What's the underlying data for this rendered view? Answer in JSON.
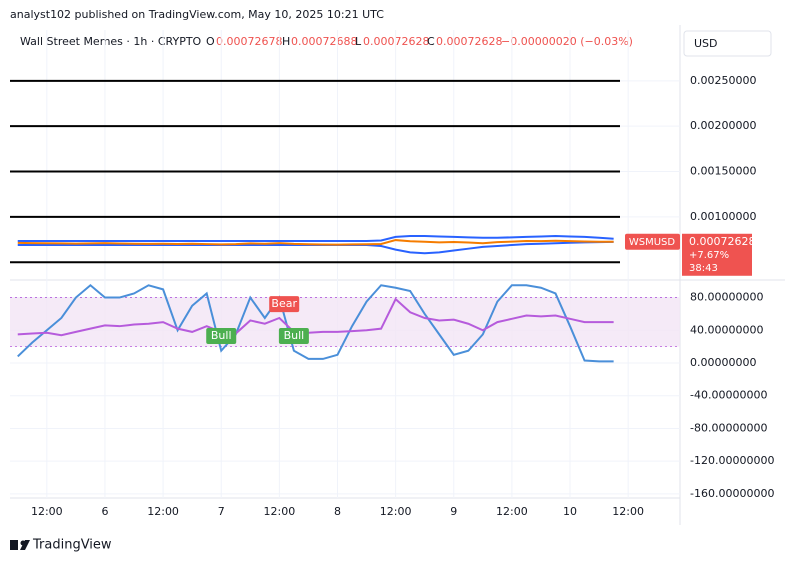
{
  "header": {
    "published": "analyst102 published on TradingView.com, May 10, 2025 10:21 UTC",
    "symbol": "Wall Street Memes · 1h · CRYPTO",
    "o_label": "O",
    "open": "0.00072678",
    "h_label": "H",
    "high": "0.00072688",
    "l_label": "L",
    "low": "0.00072628",
    "c_label": "C",
    "close": "0.00072628",
    "change": "−0.00000020 (−0.03%)",
    "currency": "USD"
  },
  "last_price": {
    "symbol": "WSMUSD",
    "value": 0.00072628,
    "change": "+7.67%",
    "countdown": "38:43"
  },
  "footer": {
    "brand": "TradingView"
  },
  "chart_data": [
    {
      "type": "line",
      "name": "price",
      "x": [
        -6,
        -3,
        0,
        3,
        6,
        9,
        12,
        15,
        18,
        21,
        24,
        27,
        30,
        33,
        36,
        39,
        42,
        45,
        48,
        51,
        54,
        57,
        60,
        63,
        66,
        69,
        72,
        75,
        78,
        81,
        84,
        87,
        90,
        93,
        96,
        99,
        102,
        105,
        108,
        111,
        114,
        117
      ],
      "xlim": [
        -7.6,
        130.7
      ],
      "ylim": [
        0.000327,
        0.00306
      ],
      "yticks": [
        {
          "value": 0.0025,
          "label": "0.00250000"
        },
        {
          "value": 0.002,
          "label": "0.00200000"
        },
        {
          "value": 0.0015,
          "label": "0.00150000"
        },
        {
          "value": 0.001,
          "label": "0.00100000"
        }
      ],
      "horizontal_lines": [
        0.0025,
        0.002,
        0.0015,
        0.001,
        0.0005
      ],
      "series": [
        {
          "color": "#2962ff",
          "values": [
            0.000735,
            0.000735,
            0.000735,
            0.000735,
            0.000735,
            0.000735,
            0.000735,
            0.000735,
            0.000735,
            0.000735,
            0.000735,
            0.000735,
            0.000735,
            0.000735,
            0.000735,
            0.000735,
            0.000735,
            0.000735,
            0.000735,
            0.000735,
            0.000735,
            0.000735,
            0.000735,
            0.000735,
            0.000735,
            0.00074,
            0.00078,
            0.00079,
            0.00079,
            0.000785,
            0.00078,
            0.000775,
            0.00077,
            0.00077,
            0.000775,
            0.00078,
            0.000785,
            0.00079,
            0.000785,
            0.00078,
            0.00077,
            0.00076
          ]
        },
        {
          "color": "#2962ff",
          "values": [
            0.00069,
            0.00069,
            0.00069,
            0.00069,
            0.00069,
            0.00069,
            0.00069,
            0.00069,
            0.00069,
            0.00069,
            0.00069,
            0.00069,
            0.00069,
            0.00069,
            0.00069,
            0.00069,
            0.00069,
            0.00069,
            0.00069,
            0.00069,
            0.00069,
            0.00069,
            0.00069,
            0.00069,
            0.00069,
            0.00068,
            0.00064,
            0.00061,
            0.0006,
            0.00061,
            0.00063,
            0.00065,
            0.00067,
            0.00068,
            0.00069,
            0.0007,
            0.000705,
            0.00071,
            0.000715,
            0.00072,
            0.000723,
            0.000725
          ]
        },
        {
          "color": "#f57c00",
          "values": [
            0.000714,
            0.000712,
            0.00071,
            0.000708,
            0.000706,
            0.000709,
            0.000711,
            0.000707,
            0.000705,
            0.000703,
            0.000704,
            0.000702,
            0.000705,
            0.000701,
            0.000698,
            0.0007,
            0.000708,
            0.000704,
            0.000712,
            0.000703,
            0.000699,
            0.000696,
            0.000695,
            0.000698,
            0.000699,
            0.000702,
            0.000745,
            0.000732,
            0.000726,
            0.00072,
            0.000724,
            0.000718,
            0.00071,
            0.000722,
            0.000728,
            0.000735,
            0.000733,
            0.000738,
            0.000734,
            0.000729,
            0.000727,
            0.00072628
          ]
        }
      ]
    },
    {
      "type": "line",
      "name": "oscillator",
      "ylim": [
        -165,
        99
      ],
      "yticks": [
        {
          "value": 80,
          "label": "80.00000000"
        },
        {
          "value": 40,
          "label": "40.00000000"
        },
        {
          "value": 0,
          "label": "0.00000000"
        },
        {
          "value": -40,
          "label": "-40.00000000"
        },
        {
          "value": -80,
          "label": "-80.00000000"
        },
        {
          "value": -120,
          "label": "-120.00000000"
        },
        {
          "value": -160,
          "label": "-160.00000000"
        }
      ],
      "band": [
        20,
        80
      ],
      "xticks": [
        {
          "value": 0,
          "label": "12:00"
        },
        {
          "value": 12,
          "label": "6"
        },
        {
          "value": 24,
          "label": "12:00"
        },
        {
          "value": 36,
          "label": "7"
        },
        {
          "value": 48,
          "label": "12:00"
        },
        {
          "value": 60,
          "label": "8"
        },
        {
          "value": 72,
          "label": "12:00"
        },
        {
          "value": 84,
          "label": "9"
        },
        {
          "value": 96,
          "label": "12:00"
        },
        {
          "value": 108,
          "label": "10"
        },
        {
          "value": 120,
          "label": "12:00"
        }
      ],
      "grid": true,
      "series": [
        {
          "color": "#4a8fd9",
          "values": [
            8,
            25,
            40,
            55,
            80,
            95,
            80,
            80,
            85,
            95,
            90,
            40,
            70,
            85,
            15,
            35,
            80,
            55,
            80,
            15,
            5,
            5,
            10,
            45,
            75,
            95,
            92,
            88,
            60,
            35,
            10,
            15,
            35,
            75,
            95,
            95,
            92,
            85,
            45,
            3,
            2,
            2
          ]
        },
        {
          "color": "#b65bdc",
          "values": [
            35,
            36,
            37,
            34,
            38,
            42,
            46,
            45,
            47,
            48,
            50,
            42,
            38,
            45,
            38,
            36,
            52,
            48,
            55,
            38,
            37,
            38,
            38,
            39,
            40,
            42,
            78,
            62,
            55,
            52,
            53,
            48,
            40,
            50,
            54,
            58,
            57,
            58,
            54,
            50,
            50,
            50
          ]
        }
      ],
      "annotations": [
        {
          "text": "Bull",
          "x": 36,
          "y": 33,
          "color": "#4caf50"
        },
        {
          "text": "Bull",
          "x": 51,
          "y": 33,
          "color": "#4caf50"
        },
        {
          "text": "Bear",
          "x": 49,
          "y": 72,
          "color": "#ef5350"
        }
      ]
    }
  ]
}
